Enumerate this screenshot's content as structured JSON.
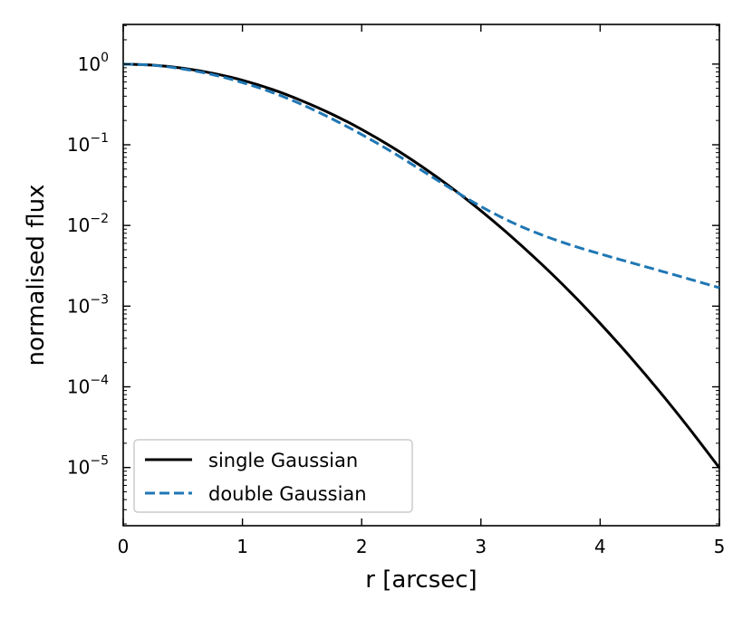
{
  "chart_data": {
    "type": "line",
    "xlabel": "r [arcsec]",
    "ylabel": "normalised flux",
    "x_ticks": [
      0,
      1,
      2,
      3,
      4,
      5
    ],
    "y_scale": "log",
    "y_ticks": [
      {
        "value": 1,
        "base": "10",
        "exp": "0"
      },
      {
        "value": 0.1,
        "base": "10",
        "exp": "−1"
      },
      {
        "value": 0.01,
        "base": "10",
        "exp": "−2"
      },
      {
        "value": 0.001,
        "base": "10",
        "exp": "−3"
      },
      {
        "value": 0.0001,
        "base": "10",
        "exp": "−4"
      },
      {
        "value": 1e-05,
        "base": "10",
        "exp": "−5"
      }
    ],
    "xlim": [
      0,
      5
    ],
    "ylim": [
      1.9e-06,
      3.1
    ],
    "grid": false,
    "legend_position": "lower-left",
    "series": [
      {
        "name": "single Gaussian",
        "color": "#000000",
        "style": "solid",
        "x": [
          0,
          0.25,
          0.5,
          0.75,
          1.0,
          1.25,
          1.5,
          1.75,
          2.0,
          2.25,
          2.5,
          2.75,
          3.0,
          3.25,
          3.5,
          3.75,
          4.0,
          4.25,
          4.5,
          4.75,
          5.0
        ],
        "y": [
          1.0,
          0.97,
          0.89,
          0.77,
          0.63,
          0.485,
          0.35,
          0.24,
          0.155,
          0.0945,
          0.0543,
          0.0296,
          0.0152,
          0.0074,
          0.00341,
          0.00149,
          0.000611,
          0.000237,
          8.69e-05,
          3.01e-05,
          9.9e-06
        ]
      },
      {
        "name": "double Gaussian",
        "color": "#1f77b4",
        "style": "dashed",
        "x": [
          0,
          0.25,
          0.5,
          0.75,
          1.0,
          1.25,
          1.5,
          1.75,
          2.0,
          2.25,
          2.5,
          2.75,
          3.0,
          3.25,
          3.5,
          3.75,
          4.0,
          4.25,
          4.5,
          4.75,
          5.0
        ],
        "y": [
          1.0,
          0.966,
          0.87,
          0.74,
          0.59,
          0.445,
          0.315,
          0.21,
          0.134,
          0.0822,
          0.0485,
          0.0285,
          0.0172,
          0.0111,
          0.00774,
          0.00574,
          0.00444,
          0.00349,
          0.00275,
          0.00216,
          0.00169
        ]
      }
    ]
  }
}
